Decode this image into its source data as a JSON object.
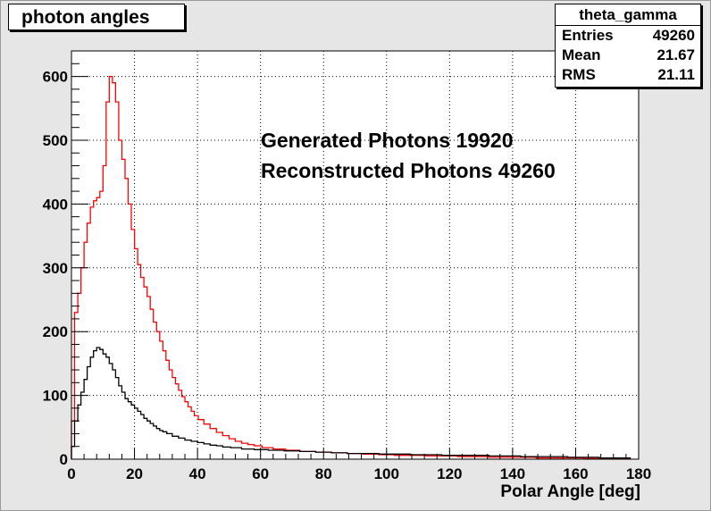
{
  "chart_data": {
    "type": "line",
    "title": "photon angles",
    "xlabel": "Polar Angle [deg]",
    "ylabel": "",
    "xlim": [
      0,
      180
    ],
    "ylim": [
      0,
      640
    ],
    "xticks": [
      "0",
      "20",
      "40",
      "60",
      "80",
      "100",
      "120",
      "140",
      "160",
      "180"
    ],
    "yticks": [
      "0",
      "100",
      "200",
      "300",
      "400",
      "500",
      "600"
    ],
    "grid": true,
    "series": [
      {
        "name": "Reconstructed Photons",
        "color": "#ff0000",
        "x": [
          0.5,
          1.5,
          2.5,
          3.5,
          4.5,
          5.5,
          6.5,
          7.5,
          8.5,
          9.5,
          10.5,
          11.5,
          12.5,
          13.5,
          14.5,
          15.5,
          16.5,
          17.5,
          18.5,
          19.5,
          20.5,
          21.5,
          22.5,
          23.5,
          24.5,
          25.5,
          26.5,
          27.5,
          28.5,
          29.5,
          30.5,
          31.5,
          32.5,
          33.5,
          34.5,
          35.5,
          36.5,
          37.5,
          38.5,
          39.5,
          41,
          43,
          45,
          47,
          49,
          51,
          53,
          55,
          57,
          59,
          62,
          66,
          70,
          75,
          80,
          85,
          90,
          95,
          100,
          105,
          110,
          115,
          120,
          125,
          130,
          135,
          140,
          145,
          150,
          155,
          160,
          165,
          170,
          175
        ],
        "y": [
          60,
          230,
          260,
          300,
          340,
          370,
          395,
          405,
          410,
          420,
          460,
          560,
          600,
          590,
          560,
          500,
          470,
          440,
          400,
          360,
          330,
          305,
          285,
          270,
          255,
          235,
          215,
          200,
          185,
          170,
          155,
          140,
          128,
          118,
          108,
          98,
          90,
          82,
          75,
          68,
          62,
          55,
          48,
          42,
          37,
          32,
          28,
          25,
          23,
          21,
          18,
          16,
          14,
          12,
          11,
          10,
          9,
          8,
          7,
          6,
          6,
          5,
          5,
          4,
          4,
          3,
          3,
          3,
          2,
          2,
          2,
          1,
          1,
          1
        ]
      },
      {
        "name": "Generated Photons",
        "color": "#000000",
        "x": [
          0.5,
          1.5,
          2.5,
          3.5,
          4.5,
          5.5,
          6.5,
          7.5,
          8.5,
          9.5,
          10.5,
          11.5,
          12.5,
          13.5,
          14.5,
          15.5,
          16.5,
          17.5,
          18.5,
          19.5,
          20.5,
          21.5,
          22.5,
          23.5,
          24.5,
          25.5,
          26.5,
          27.5,
          28.5,
          29.5,
          31,
          33,
          35,
          37,
          39,
          41,
          43,
          45,
          47,
          49,
          52,
          56,
          60,
          65,
          70,
          75,
          80,
          85,
          90,
          95,
          100,
          105,
          110,
          115,
          120,
          125,
          130,
          135,
          140,
          145,
          150,
          155,
          160,
          165,
          170,
          175
        ],
        "y": [
          20,
          60,
          85,
          105,
          125,
          145,
          160,
          170,
          175,
          172,
          165,
          160,
          150,
          140,
          128,
          115,
          105,
          95,
          90,
          85,
          80,
          75,
          70,
          64,
          60,
          56,
          52,
          48,
          45,
          43,
          40,
          36,
          33,
          30,
          28,
          26,
          24,
          22,
          21,
          19,
          18,
          16,
          15,
          14,
          13,
          12,
          11,
          10,
          9,
          9,
          8,
          8,
          7,
          7,
          6,
          6,
          6,
          5,
          5,
          4,
          4,
          4,
          3,
          3,
          2,
          2
        ]
      }
    ]
  },
  "legend": {
    "title": "theta_gamma",
    "rows": [
      {
        "label": "Entries",
        "value": "49260"
      },
      {
        "label": "Mean",
        "value": "21.67"
      },
      {
        "label": "RMS",
        "value": "21.11"
      }
    ]
  },
  "annotations": {
    "generated": "Generated Photons 19920",
    "reconstructed": "Reconstructed Photons 49260"
  }
}
